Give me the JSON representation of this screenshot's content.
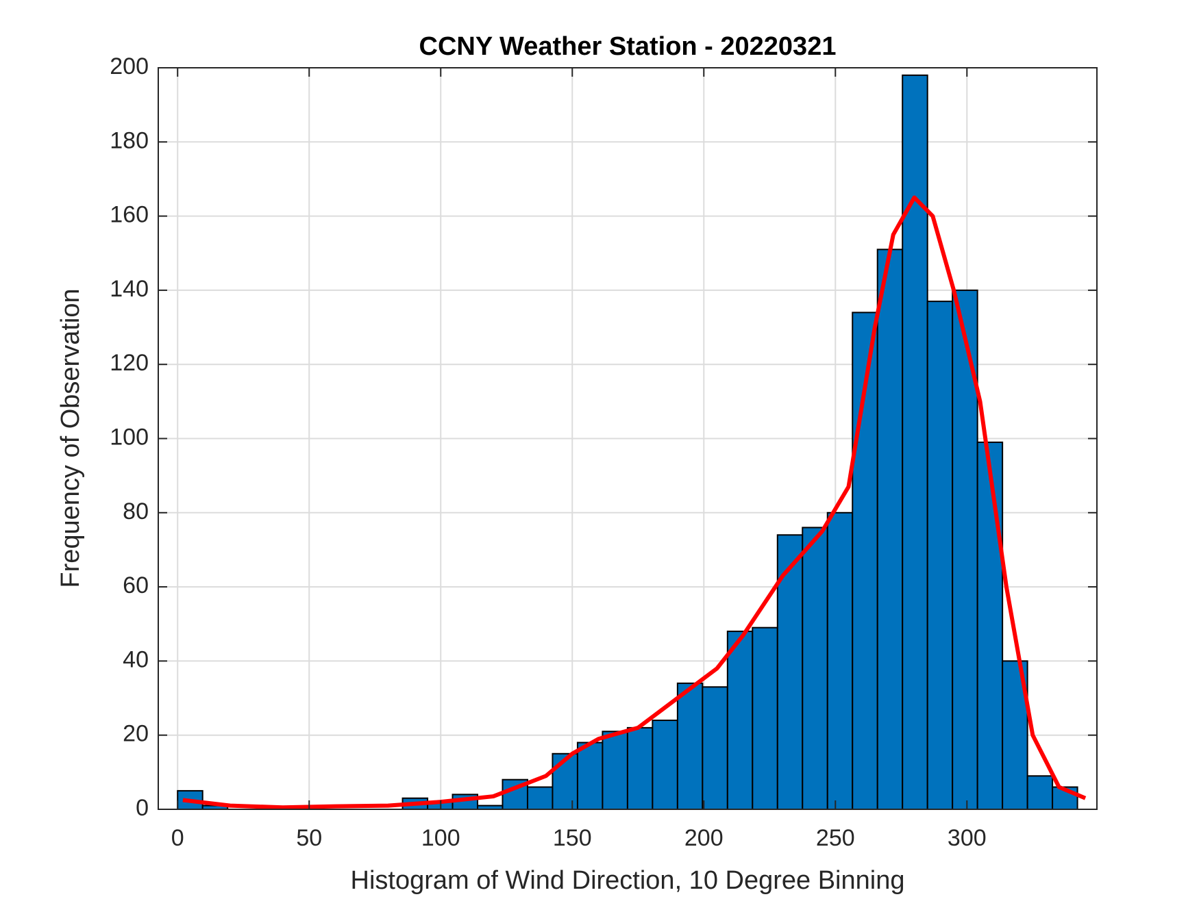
{
  "chart_data": {
    "type": "histogram",
    "title": "CCNY Weather Station - 20220321",
    "xlabel": "Histogram of Wind Direction, 10 Degree Binning",
    "ylabel": "Frequency of Observation",
    "bins": [
      0,
      9.5,
      19,
      28.5,
      38,
      47.5,
      57,
      66.5,
      76,
      85.5,
      95,
      104.5,
      114,
      123.5,
      133,
      142.5,
      152,
      161.5,
      171,
      180.5,
      190,
      199.5,
      209,
      218.5,
      228,
      237.5,
      247,
      256.5,
      266,
      275.5,
      285,
      294.5,
      304,
      313.5,
      323,
      332.5,
      342
    ],
    "values": [
      5,
      1,
      0,
      0,
      0,
      0,
      0,
      0,
      0,
      3,
      2,
      4,
      1,
      8,
      6,
      15,
      18,
      21,
      22,
      24,
      34,
      33,
      48,
      49,
      74,
      76,
      80,
      134,
      151,
      198,
      137,
      140,
      99,
      40,
      9,
      6
    ],
    "color": "#0072bd",
    "overlay": {
      "type": "line",
      "color": "#ff0000",
      "x": [
        2,
        20,
        40,
        60,
        80,
        100,
        120,
        140,
        150,
        160,
        175,
        190,
        205,
        215,
        230,
        245,
        255,
        265,
        272,
        280,
        287,
        295,
        305,
        315,
        325,
        335,
        345
      ],
      "y": [
        2.5,
        1,
        0.5,
        0.8,
        1,
        2,
        3.5,
        9,
        15,
        19,
        22,
        30,
        38,
        47,
        63,
        75,
        87,
        130,
        155,
        165,
        160,
        140,
        110,
        60,
        20,
        6,
        3
      ]
    },
    "xlim": [
      -7.35,
      349.4
    ],
    "ylim": [
      0,
      200
    ],
    "xticks": [
      0,
      50,
      100,
      150,
      200,
      250,
      300
    ],
    "yticks": [
      0,
      20,
      40,
      60,
      80,
      100,
      120,
      140,
      160,
      180,
      200
    ],
    "grid": true
  }
}
